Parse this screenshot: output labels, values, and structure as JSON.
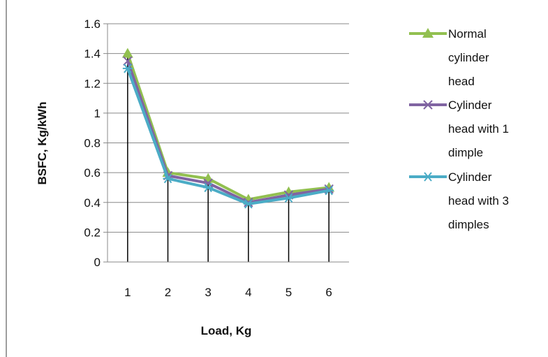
{
  "chart_data": {
    "type": "line",
    "categories": [
      "1",
      "2",
      "3",
      "4",
      "5",
      "6"
    ],
    "ylim": [
      0,
      1.6
    ],
    "yticks": [
      "0",
      "0.2",
      "0.4",
      "0.6",
      "0.8",
      "1",
      "1.2",
      "1.4",
      "1.6"
    ],
    "xlabel": "Load, Kg",
    "ylabel": "BSFC, Kg/kWh",
    "grid": true,
    "legend_position": "right",
    "series": [
      {
        "name": "Normal cylinder head",
        "legend_lines": [
          "Normal",
          "cylinder",
          "head"
        ],
        "marker": "triangle",
        "color": "#92c050",
        "values": [
          1.4,
          0.6,
          0.56,
          0.42,
          0.47,
          0.5
        ]
      },
      {
        "name": "Cylinder head with 1 dimple",
        "legend_lines": [
          "Cylinder",
          "head with 1",
          "dimple"
        ],
        "marker": "x",
        "color": "#8064a2",
        "values": [
          1.35,
          0.58,
          0.53,
          0.4,
          0.45,
          0.49
        ]
      },
      {
        "name": "Cylinder head with 3 dimples",
        "legend_lines": [
          "Cylinder",
          "head with 3",
          "dimples"
        ],
        "marker": "asterisk",
        "color": "#4bacc6",
        "values": [
          1.3,
          0.56,
          0.5,
          0.39,
          0.43,
          0.48
        ]
      }
    ],
    "drop_lines": true
  }
}
